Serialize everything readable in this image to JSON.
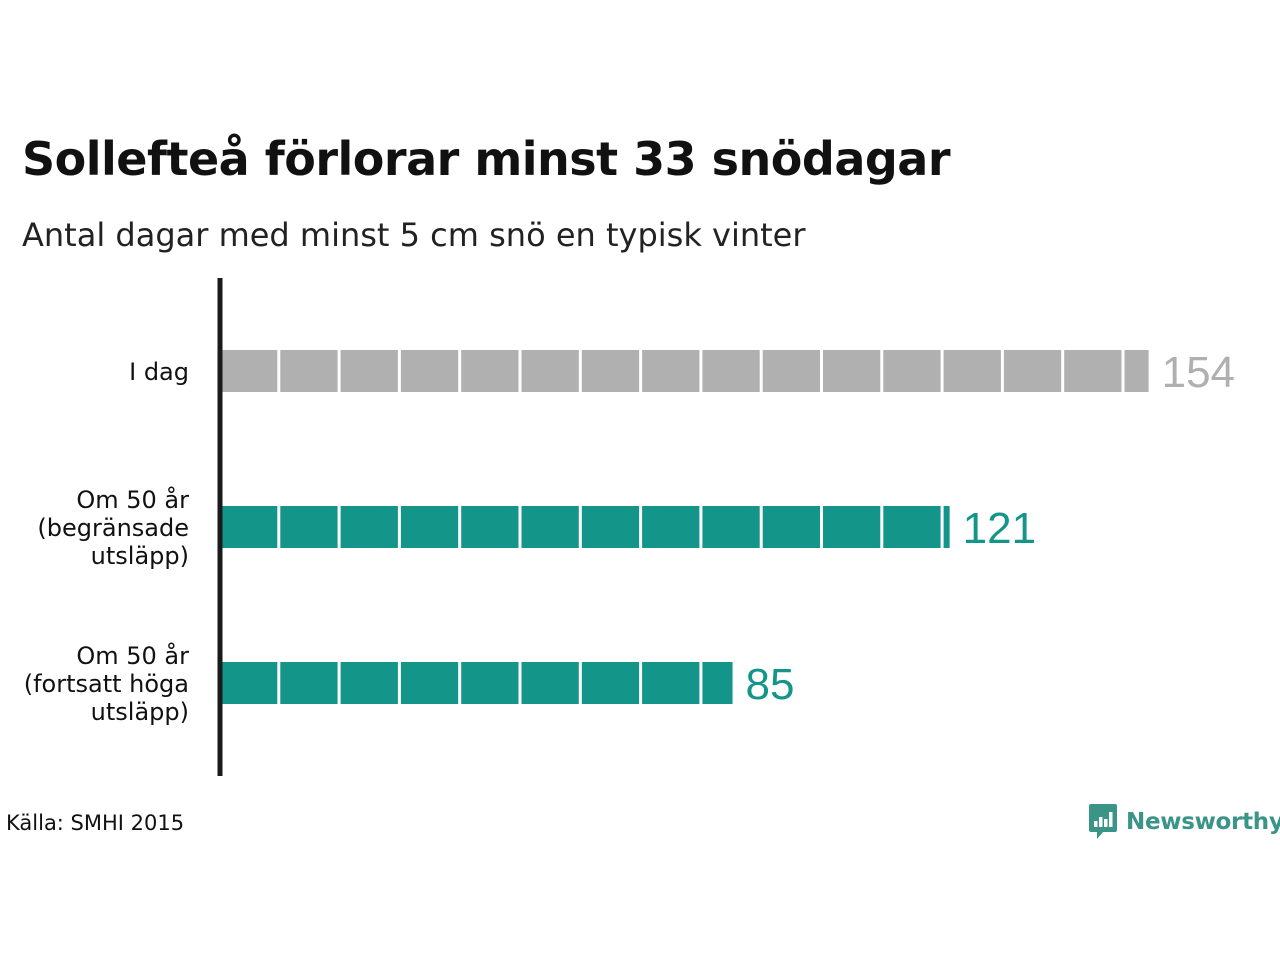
{
  "title": "Sollefteå förlorar minst 33 snödagar",
  "subtitle": "Antal dagar med minst 5 cm snö en typisk vinter",
  "source": "Källa: SMHI 2015",
  "brand": {
    "name": "Newsworthy",
    "icon": "newsworthy-logo-icon"
  },
  "colors": {
    "today": "#b0b0b0",
    "future": "#14958a",
    "axis": "#1a1a1a",
    "brand": "#3a9487"
  },
  "chart_data": {
    "type": "bar",
    "orientation": "horizontal",
    "unit_block_days": 10,
    "categories": [
      [
        "I dag"
      ],
      [
        "Om 50 år",
        "(begränsade",
        "utsläpp)"
      ],
      [
        "Om 50 år",
        "(fortsatt höga",
        "utsläpp)"
      ]
    ],
    "values": [
      154,
      121,
      85
    ],
    "value_labels": [
      "154",
      "121",
      "85"
    ],
    "bar_colors": [
      "#b0b0b0",
      "#14958a",
      "#14958a"
    ],
    "xlim": [
      0,
      160
    ],
    "grid": false,
    "legend": "none"
  }
}
